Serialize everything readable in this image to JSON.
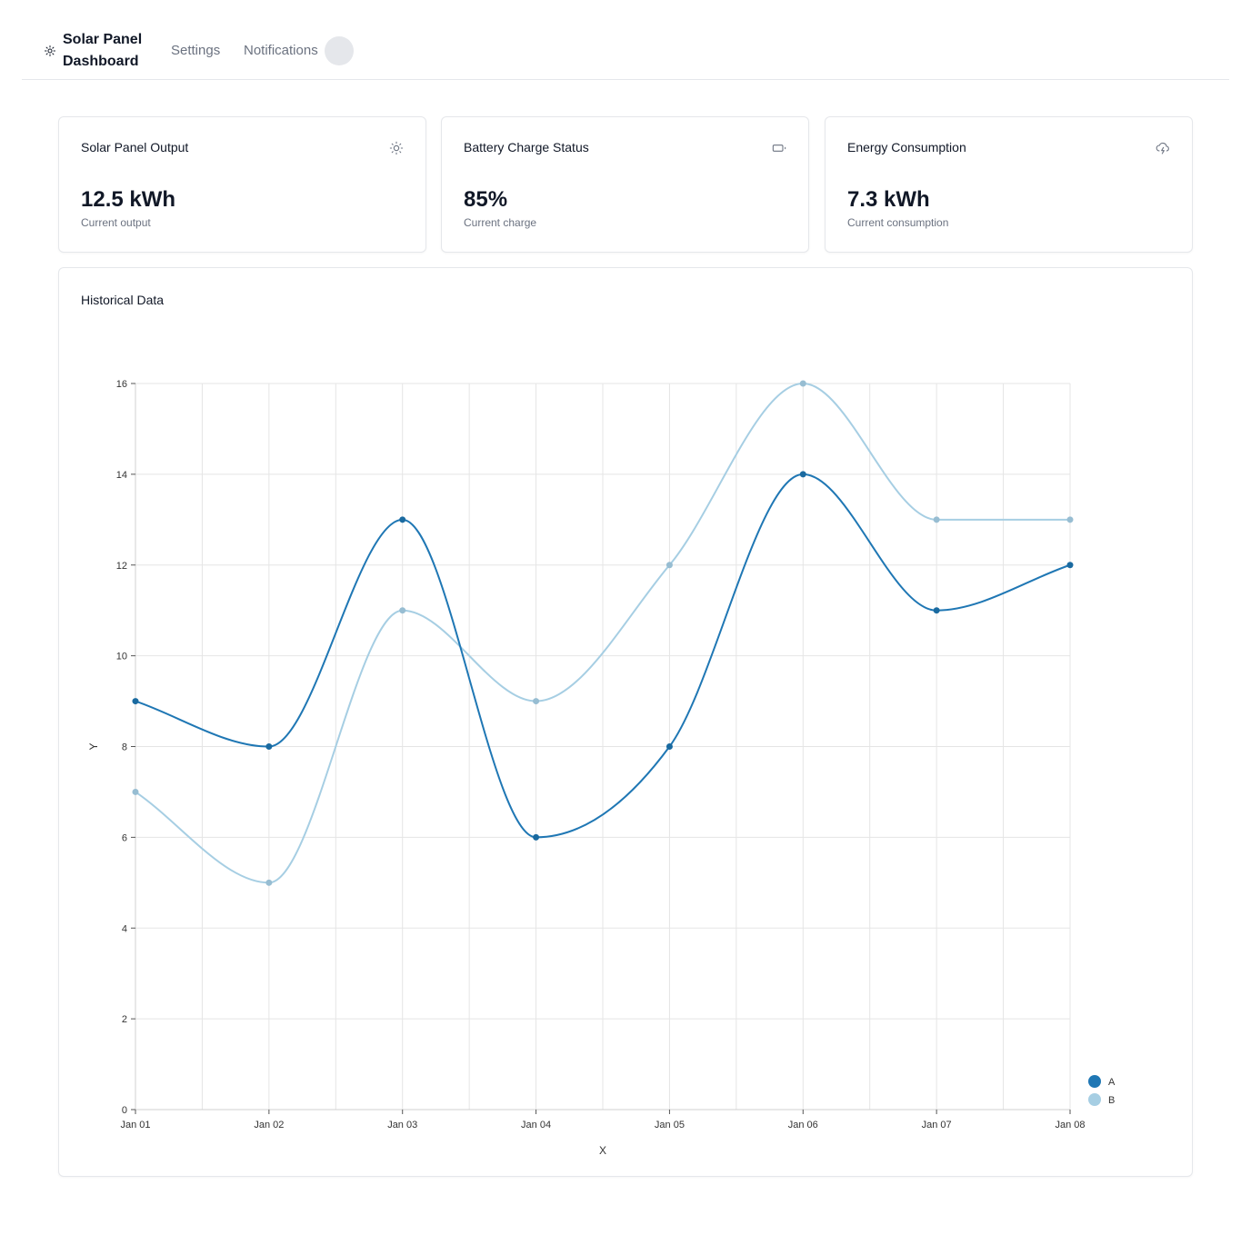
{
  "header": {
    "title": "Solar Panel Dashboard",
    "nav": {
      "settings": "Settings",
      "notifications": "Notifications"
    },
    "brand_icon": "sun-icon"
  },
  "cards": [
    {
      "title": "Solar Panel Output",
      "icon": "sun-icon",
      "value": "12.5 kWh",
      "subtitle": "Current output"
    },
    {
      "title": "Battery Charge Status",
      "icon": "battery-icon",
      "value": "85%",
      "subtitle": "Current charge"
    },
    {
      "title": "Energy Consumption",
      "icon": "cloud-lightning-icon",
      "value": "7.3 kWh",
      "subtitle": "Current consumption"
    }
  ],
  "history": {
    "title": "Historical Data"
  },
  "colors": {
    "series_a": "#1f77b4",
    "series_b": "#a6cee3",
    "grid": "#e5e5e5",
    "muted_text": "#6b7280"
  },
  "chart_data": {
    "type": "line",
    "title": "",
    "xlabel": "X",
    "ylabel": "Y",
    "categories": [
      "Jan 01",
      "Jan 02",
      "Jan 03",
      "Jan 04",
      "Jan 05",
      "Jan 06",
      "Jan 07",
      "Jan 08"
    ],
    "ylim": [
      0,
      16
    ],
    "yticks": [
      0,
      2,
      4,
      6,
      8,
      10,
      12,
      14,
      16
    ],
    "grid": true,
    "legend_position": "bottom-right",
    "series": [
      {
        "name": "A",
        "color": "#1f77b4",
        "values": [
          9,
          8,
          13,
          6,
          8,
          14,
          11,
          12
        ]
      },
      {
        "name": "B",
        "color": "#a6cee3",
        "values": [
          7,
          5,
          11,
          9,
          12,
          16,
          13,
          13
        ]
      }
    ]
  }
}
